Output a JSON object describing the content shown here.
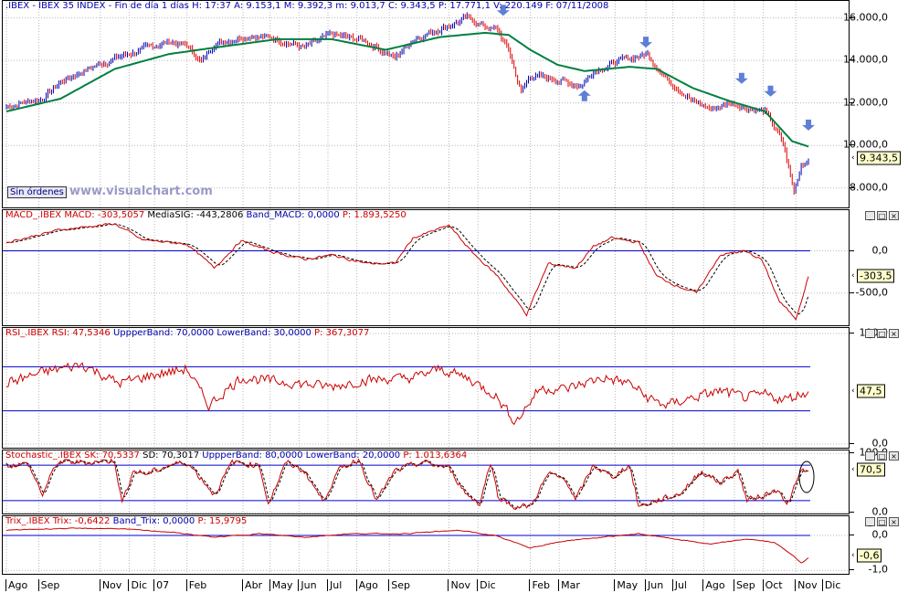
{
  "chart_data": [
    {
      "type": "line",
      "name": "price",
      "header": {
        "symbol": ".IBEX - IBEX 35 INDEX - Fin de día 1 días",
        "H": "H: 17:37",
        "A": "A: 9.153,1",
        "M": "M: 9.392,3",
        "m": "m: 9.013,7",
        "C": "C: 9.343,5",
        "P": "P: 17.771,1",
        "V": "V: 220.149",
        "F": "F: 07/11/2008"
      },
      "ylim": [
        7000,
        16800
      ],
      "yticks": [
        {
          "v": 16000,
          "label": "16.000,0"
        },
        {
          "v": 14000,
          "label": "14.000,0"
        },
        {
          "v": 12000,
          "label": "12.000,0"
        },
        {
          "v": 10000,
          "label": "10.000,0"
        },
        {
          "v": 8000,
          "label": "8.000,0"
        }
      ],
      "last_value": 9343.5,
      "last_label": "9.343,5",
      "price_anchors": [
        [
          0,
          11800
        ],
        [
          8,
          12000
        ],
        [
          20,
          12200
        ],
        [
          30,
          13000
        ],
        [
          45,
          13600
        ],
        [
          60,
          14100
        ],
        [
          75,
          14500
        ],
        [
          90,
          14900
        ],
        [
          100,
          14700
        ],
        [
          108,
          13900
        ],
        [
          115,
          14800
        ],
        [
          135,
          15200
        ],
        [
          150,
          15000
        ],
        [
          165,
          14600
        ],
        [
          180,
          15200
        ],
        [
          200,
          14900
        ],
        [
          215,
          14100
        ],
        [
          225,
          15000
        ],
        [
          240,
          15500
        ],
        [
          255,
          16000
        ],
        [
          265,
          15600
        ],
        [
          272,
          15400
        ],
        [
          278,
          14500
        ],
        [
          285,
          12500
        ],
        [
          290,
          13300
        ],
        [
          305,
          13100
        ],
        [
          318,
          12800
        ],
        [
          325,
          13500
        ],
        [
          340,
          14000
        ],
        [
          355,
          14300
        ],
        [
          365,
          13200
        ],
        [
          380,
          12100
        ],
        [
          390,
          11700
        ],
        [
          400,
          12000
        ],
        [
          410,
          11800
        ],
        [
          420,
          11600
        ],
        [
          430,
          10100
        ],
        [
          436,
          7800
        ],
        [
          440,
          9100
        ],
        [
          444,
          9343
        ]
      ],
      "ma_anchors": [
        [
          0,
          11600
        ],
        [
          30,
          12200
        ],
        [
          60,
          13600
        ],
        [
          90,
          14300
        ],
        [
          115,
          14600
        ],
        [
          150,
          15000
        ],
        [
          180,
          15000
        ],
        [
          210,
          14500
        ],
        [
          240,
          15100
        ],
        [
          265,
          15300
        ],
        [
          278,
          15200
        ],
        [
          290,
          14500
        ],
        [
          305,
          13800
        ],
        [
          320,
          13500
        ],
        [
          345,
          13700
        ],
        [
          360,
          13600
        ],
        [
          380,
          12700
        ],
        [
          400,
          12100
        ],
        [
          420,
          11600
        ],
        [
          435,
          10200
        ],
        [
          444,
          9950
        ]
      ],
      "markers": [
        {
          "x": 275,
          "v": 16100,
          "dir": "down"
        },
        {
          "x": 320,
          "v": 12600,
          "dir": "up"
        },
        {
          "x": 354,
          "v": 14600,
          "dir": "down"
        },
        {
          "x": 407,
          "v": 12900,
          "dir": "down"
        },
        {
          "x": 423,
          "v": 12300,
          "dir": "down"
        },
        {
          "x": 444,
          "v": 10700,
          "dir": "down"
        }
      ],
      "colors": {
        "price_up": "#0000aa",
        "price_down": "#dd0000",
        "ma": "#008040",
        "marker": "#5f7fd6"
      }
    },
    {
      "type": "line",
      "name": "macd",
      "header": {
        "title": "MACD_.IBEX",
        "macd": "MACD: -303,5057",
        "signal": "MediaSIG: -443,2806",
        "band": "Band_MACD: 0,0000",
        "p": "P: 1.893,5250"
      },
      "ylim": [
        -900,
        480
      ],
      "yticks": [
        {
          "v": 0,
          "label": "0,0"
        },
        {
          "v": -500,
          "label": "-500,0"
        }
      ],
      "band": 0,
      "last_value": -303.5,
      "last_label": "-303,5",
      "anchors": [
        [
          0,
          100
        ],
        [
          30,
          250
        ],
        [
          60,
          320
        ],
        [
          75,
          130
        ],
        [
          100,
          80
        ],
        [
          115,
          -200
        ],
        [
          130,
          120
        ],
        [
          145,
          0
        ],
        [
          165,
          -100
        ],
        [
          180,
          -50
        ],
        [
          200,
          -150
        ],
        [
          215,
          -150
        ],
        [
          225,
          150
        ],
        [
          245,
          300
        ],
        [
          258,
          -20
        ],
        [
          272,
          -300
        ],
        [
          288,
          -750
        ],
        [
          300,
          -150
        ],
        [
          315,
          -200
        ],
        [
          325,
          50
        ],
        [
          335,
          150
        ],
        [
          350,
          100
        ],
        [
          360,
          -300
        ],
        [
          370,
          -400
        ],
        [
          382,
          -500
        ],
        [
          395,
          -50
        ],
        [
          408,
          0
        ],
        [
          418,
          -100
        ],
        [
          428,
          -600
        ],
        [
          437,
          -800
        ],
        [
          444,
          -303
        ]
      ],
      "colors": {
        "line": "#cc0000",
        "signal": "#000000",
        "band": "#0000cc"
      }
    },
    {
      "type": "line",
      "name": "rsi",
      "header": {
        "title": "RSI_.IBEX",
        "rsi": "RSI: 47,5346",
        "upper": "UppperBand: 70,0000",
        "lower": "LowerBand: 30,0000",
        "p": "P: 367,3077"
      },
      "ylim": [
        -5,
        105
      ],
      "yticks": [
        {
          "v": 100,
          "label": "100,0"
        },
        {
          "v": 0,
          "label": "0,0"
        }
      ],
      "bands": [
        70,
        30
      ],
      "last_value": 47.5,
      "last_label": "47,5",
      "anchors": [
        [
          0,
          55
        ],
        [
          20,
          65
        ],
        [
          42,
          72
        ],
        [
          62,
          55
        ],
        [
          80,
          62
        ],
        [
          100,
          68
        ],
        [
          112,
          35
        ],
        [
          130,
          60
        ],
        [
          160,
          55
        ],
        [
          180,
          52
        ],
        [
          200,
          58
        ],
        [
          225,
          60
        ],
        [
          240,
          68
        ],
        [
          255,
          60
        ],
        [
          270,
          45
        ],
        [
          282,
          20
        ],
        [
          295,
          50
        ],
        [
          310,
          50
        ],
        [
          330,
          60
        ],
        [
          345,
          55
        ],
        [
          355,
          42
        ],
        [
          365,
          35
        ],
        [
          380,
          42
        ],
        [
          395,
          48
        ],
        [
          410,
          42
        ],
        [
          420,
          45
        ],
        [
          430,
          40
        ],
        [
          444,
          47.5
        ]
      ],
      "colors": {
        "line": "#cc0000",
        "band": "#0000cc"
      }
    },
    {
      "type": "line",
      "name": "stochastic",
      "header": {
        "title": "Stochastic_.IBEX",
        "sk": "SK: 70,5337",
        "sd": "SD: 70,3017",
        "upper": "UppperBand: 80,0000",
        "lower": "LowerBand: 20,0000",
        "p": "P: 1.013,6364"
      },
      "ylim": [
        -5,
        105
      ],
      "yticks": [
        {
          "v": 100,
          "label": "100,0"
        },
        {
          "v": 0,
          "label": "0,0"
        }
      ],
      "bands": [
        80,
        20
      ],
      "last_value": 70.5,
      "last_label": "70,5",
      "anchors": [
        [
          0,
          80
        ],
        [
          12,
          82
        ],
        [
          20,
          30
        ],
        [
          28,
          85
        ],
        [
          45,
          85
        ],
        [
          60,
          88
        ],
        [
          64,
          15
        ],
        [
          70,
          70
        ],
        [
          78,
          65
        ],
        [
          90,
          80
        ],
        [
          100,
          85
        ],
        [
          110,
          50
        ],
        [
          115,
          30
        ],
        [
          125,
          85
        ],
        [
          140,
          80
        ],
        [
          145,
          15
        ],
        [
          155,
          85
        ],
        [
          165,
          70
        ],
        [
          175,
          20
        ],
        [
          185,
          75
        ],
        [
          195,
          90
        ],
        [
          205,
          20
        ],
        [
          215,
          70
        ],
        [
          230,
          85
        ],
        [
          245,
          75
        ],
        [
          255,
          30
        ],
        [
          262,
          15
        ],
        [
          268,
          85
        ],
        [
          272,
          30
        ],
        [
          280,
          10
        ],
        [
          290,
          10
        ],
        [
          300,
          65
        ],
        [
          310,
          55
        ],
        [
          315,
          20
        ],
        [
          325,
          80
        ],
        [
          335,
          60
        ],
        [
          345,
          80
        ],
        [
          350,
          10
        ],
        [
          360,
          20
        ],
        [
          372,
          30
        ],
        [
          385,
          70
        ],
        [
          395,
          50
        ],
        [
          405,
          70
        ],
        [
          410,
          20
        ],
        [
          420,
          30
        ],
        [
          428,
          40
        ],
        [
          432,
          10
        ],
        [
          440,
          70
        ],
        [
          444,
          70.5
        ]
      ],
      "colors": {
        "line": "#cc0000",
        "signal": "#000000",
        "band": "#0000cc"
      }
    },
    {
      "type": "line",
      "name": "trix",
      "header": {
        "title": "Trix_.IBEX",
        "trix": "Trix: -0,6422",
        "band": "Band_Trix: 0,0000",
        "p": "P: 15,9795"
      },
      "ylim": [
        -1.15,
        0.55
      ],
      "yticks": [
        {
          "v": 0,
          "label": "0,0"
        },
        {
          "v": -1,
          "label": "-1,0"
        }
      ],
      "band": 0,
      "last_value": -0.6,
      "last_label": "-0,6",
      "anchors": [
        [
          0,
          0.15
        ],
        [
          30,
          0.2
        ],
        [
          60,
          0.2
        ],
        [
          90,
          0.1
        ],
        [
          115,
          -0.05
        ],
        [
          140,
          0.05
        ],
        [
          165,
          -0.05
        ],
        [
          190,
          0.05
        ],
        [
          220,
          0.05
        ],
        [
          250,
          0.15
        ],
        [
          270,
          0.0
        ],
        [
          290,
          -0.35
        ],
        [
          310,
          -0.15
        ],
        [
          330,
          -0.05
        ],
        [
          350,
          0.05
        ],
        [
          370,
          -0.1
        ],
        [
          390,
          -0.25
        ],
        [
          410,
          -0.1
        ],
        [
          425,
          -0.2
        ],
        [
          435,
          -0.55
        ],
        [
          440,
          -0.8
        ],
        [
          444,
          -0.64
        ]
      ],
      "colors": {
        "line": "#cc0000",
        "band": "#0000cc"
      }
    }
  ],
  "x_axis": {
    "n_points": 445,
    "labels": [
      {
        "i": 0,
        "label": "Ago"
      },
      {
        "i": 18,
        "label": "Sep"
      },
      {
        "i": 52,
        "label": "Nov"
      },
      {
        "i": 68,
        "label": "Dic"
      },
      {
        "i": 82,
        "label": "07"
      },
      {
        "i": 100,
        "label": "Feb"
      },
      {
        "i": 131,
        "label": "Abr"
      },
      {
        "i": 146,
        "label": "May"
      },
      {
        "i": 162,
        "label": "Jun"
      },
      {
        "i": 178,
        "label": "Jul"
      },
      {
        "i": 194,
        "label": "Ago"
      },
      {
        "i": 212,
        "label": "Sep"
      },
      {
        "i": 245,
        "label": "Nov"
      },
      {
        "i": 261,
        "label": "Dic"
      },
      {
        "i": 290,
        "label": "Feb"
      },
      {
        "i": 306,
        "label": "Mar"
      },
      {
        "i": 337,
        "label": "May"
      },
      {
        "i": 354,
        "label": "Jun"
      },
      {
        "i": 369,
        "label": "Jul"
      },
      {
        "i": 386,
        "label": "Ago"
      },
      {
        "i": 403,
        "label": "Sep"
      },
      {
        "i": 419,
        "label": "Oct"
      },
      {
        "i": 437,
        "label": "Nov"
      },
      {
        "i": 452,
        "label": "Dic"
      }
    ]
  },
  "ui": {
    "sin_ordenes": "Sin órdenes",
    "watermark": "www.visualchart.com",
    "btn_min": "_",
    "btn_max": "□",
    "btn_close": "×"
  }
}
